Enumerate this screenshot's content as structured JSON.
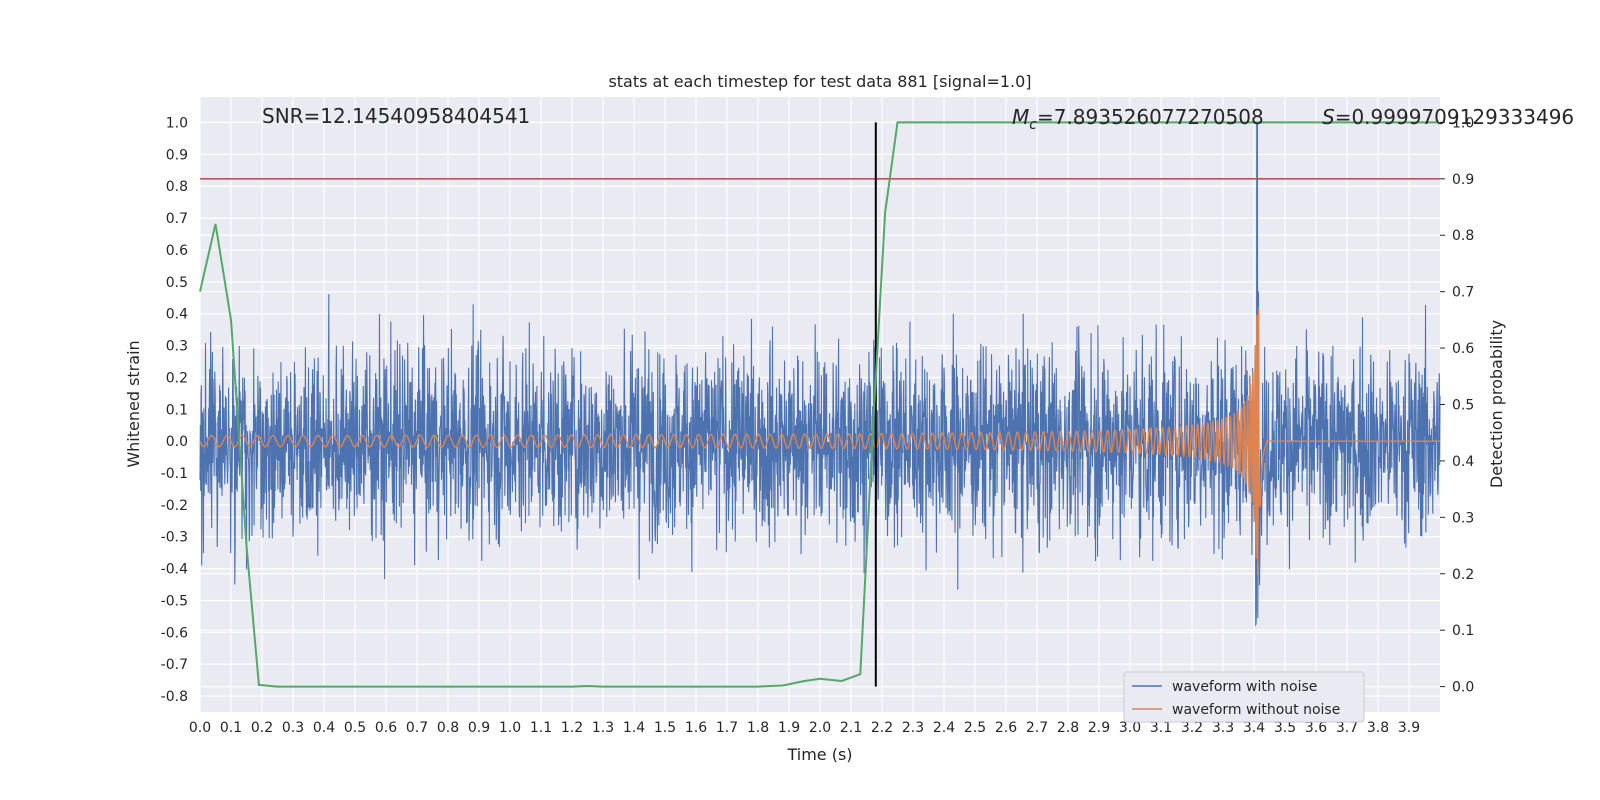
{
  "chart_data": {
    "type": "line",
    "title": "stats at each timestep for test data 881 [signal=1.0]",
    "xlabel": "Time (s)",
    "ylabel_left": "Whitened strain",
    "ylabel_right": "Detection probability",
    "xlim": [
      0.0,
      4.0
    ],
    "ylim_left": [
      -0.85,
      1.08
    ],
    "ylim_right": [
      -0.045,
      1.045
    ],
    "x_ticks": [
      "0.0",
      "0.1",
      "0.2",
      "0.3",
      "0.4",
      "0.5",
      "0.6",
      "0.7",
      "0.8",
      "0.9",
      "1.0",
      "1.1",
      "1.2",
      "1.3",
      "1.4",
      "1.5",
      "1.6",
      "1.7",
      "1.8",
      "1.9",
      "2.0",
      "2.1",
      "2.2",
      "2.3",
      "2.4",
      "2.5",
      "2.6",
      "2.7",
      "2.8",
      "2.9",
      "3.0",
      "3.1",
      "3.2",
      "3.3",
      "3.4",
      "3.5",
      "3.6",
      "3.7",
      "3.8",
      "3.9"
    ],
    "y_ticks_left": [
      "1.0",
      "0.9",
      "0.8",
      "0.7",
      "0.6",
      "0.5",
      "0.4",
      "0.3",
      "0.2",
      "0.1",
      "0.0",
      "-0.1",
      "-0.2",
      "-0.3",
      "-0.4",
      "-0.5",
      "-0.6",
      "-0.7",
      "-0.8"
    ],
    "y_ticks_right": [
      "1.0",
      "0.9",
      "0.8",
      "0.7",
      "0.6",
      "0.5",
      "0.4",
      "0.3",
      "0.2",
      "0.1",
      "0.0"
    ],
    "annotations": {
      "snr": "SNR=12.14540958404541",
      "mc_symbol": "M",
      "mc_subscript": "c",
      "mc_value": "=7.893526077270508",
      "s_symbol": "S",
      "s_value": "=0.9999709129333496"
    },
    "threshold_right": 0.9,
    "merger_time": 2.18,
    "chirp_end_time": 3.42,
    "series": [
      {
        "name": "waveform with noise",
        "axis": "left",
        "color": "#4c72b0",
        "description": "noisy whitened strain, amplitude roughly within -0.75 to 0.75, peak 1.0 near t=3.41"
      },
      {
        "name": "waveform without noise",
        "axis": "left",
        "color": "#dd8452",
        "description": "chirp signal, amplitude growing from ~0.02 to ~0.42 peak near t=3.41, then 0"
      },
      {
        "name": "detection probability",
        "axis": "right",
        "color": "#55a868",
        "x": [
          0.0,
          0.05,
          0.1,
          0.15,
          0.19,
          0.25,
          0.5,
          1.0,
          1.2,
          1.25,
          1.3,
          1.5,
          1.8,
          1.88,
          1.95,
          2.0,
          2.07,
          2.13,
          2.17,
          2.21,
          2.25,
          2.3,
          3.0,
          3.5,
          3.99
        ],
        "values": [
          0.7,
          0.82,
          0.65,
          0.25,
          0.003,
          0.0,
          0.0,
          0.0,
          0.0,
          0.001,
          0.0,
          0.0,
          0.0,
          0.002,
          0.01,
          0.014,
          0.01,
          0.022,
          0.45,
          0.84,
          1.0,
          1.0,
          1.0,
          1.0,
          1.0
        ]
      }
    ],
    "legend": {
      "position": "lower-right",
      "entries": [
        "waveform with noise",
        "waveform without noise"
      ]
    },
    "colors": {
      "background": "#eaeaf2",
      "grid": "#ffffff",
      "noise": "#4c72b0",
      "clean": "#dd8452",
      "probability": "#55a868",
      "threshold": "#c44e52",
      "merger_line": "#000000"
    }
  }
}
